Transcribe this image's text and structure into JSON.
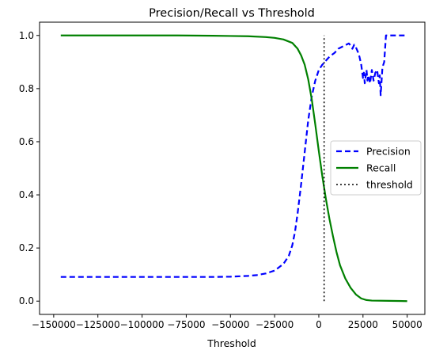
{
  "chart_data": {
    "type": "line",
    "title": "Precision/Recall vs Threshold",
    "xlabel": "Threshold",
    "ylabel": "",
    "xlim": [
      -158000,
      60000
    ],
    "ylim": [
      -0.05,
      1.05
    ],
    "grid": false,
    "legend_position": "center right",
    "x_ticks": [
      -150000,
      -125000,
      -100000,
      -75000,
      -50000,
      -25000,
      0,
      25000,
      50000
    ],
    "x_tick_labels": [
      "−150000",
      "−125000",
      "−100000",
      "−75000",
      "−50000",
      "−25000",
      "0",
      "25000",
      "50000"
    ],
    "y_ticks": [
      0.0,
      0.2,
      0.4,
      0.6,
      0.8,
      1.0
    ],
    "y_tick_labels": [
      "0.0",
      "0.2",
      "0.4",
      "0.6",
      "0.8",
      "1.0"
    ],
    "series": [
      {
        "name": "Precision",
        "color": "#0000ff",
        "style": "dashed",
        "points": [
          [
            -146000,
            0.091
          ],
          [
            -120000,
            0.091
          ],
          [
            -100000,
            0.091
          ],
          [
            -80000,
            0.091
          ],
          [
            -60000,
            0.091
          ],
          [
            -50000,
            0.092
          ],
          [
            -40000,
            0.095
          ],
          [
            -35000,
            0.098
          ],
          [
            -30000,
            0.104
          ],
          [
            -25000,
            0.115
          ],
          [
            -20000,
            0.14
          ],
          [
            -17000,
            0.17
          ],
          [
            -15000,
            0.21
          ],
          [
            -13500,
            0.26
          ],
          [
            -12000,
            0.33
          ],
          [
            -10000,
            0.44
          ],
          [
            -8000,
            0.56
          ],
          [
            -6000,
            0.68
          ],
          [
            -4000,
            0.77
          ],
          [
            -2000,
            0.83
          ],
          [
            0,
            0.87
          ],
          [
            2000,
            0.89
          ],
          [
            4000,
            0.905
          ],
          [
            6000,
            0.92
          ],
          [
            9000,
            0.935
          ],
          [
            11000,
            0.95
          ],
          [
            12500,
            0.955
          ],
          [
            14000,
            0.96
          ],
          [
            15500,
            0.965
          ],
          [
            17000,
            0.97
          ],
          [
            18000,
            0.962
          ],
          [
            19000,
            0.95
          ],
          [
            20000,
            0.965
          ],
          [
            21000,
            0.955
          ],
          [
            22000,
            0.94
          ],
          [
            23000,
            0.92
          ],
          [
            24000,
            0.89
          ],
          [
            25000,
            0.84
          ],
          [
            25500,
            0.86
          ],
          [
            26000,
            0.82
          ],
          [
            27000,
            0.87
          ],
          [
            27500,
            0.83
          ],
          [
            28000,
            0.85
          ],
          [
            29000,
            0.82
          ],
          [
            30000,
            0.87
          ],
          [
            31000,
            0.83
          ],
          [
            32000,
            0.86
          ],
          [
            33000,
            0.87
          ],
          [
            34000,
            0.82
          ],
          [
            34500,
            0.85
          ],
          [
            35000,
            0.775
          ],
          [
            36000,
            0.88
          ],
          [
            37000,
            0.9
          ],
          [
            38000,
            1.0
          ],
          [
            50000,
            1.0
          ]
        ]
      },
      {
        "name": "Recall",
        "color": "#008000",
        "style": "solid",
        "points": [
          [
            -146000,
            1.0
          ],
          [
            -120000,
            1.0
          ],
          [
            -100000,
            1.0
          ],
          [
            -80000,
            1.0
          ],
          [
            -60000,
            0.999
          ],
          [
            -50000,
            0.998
          ],
          [
            -40000,
            0.997
          ],
          [
            -30000,
            0.994
          ],
          [
            -25000,
            0.991
          ],
          [
            -20000,
            0.985
          ],
          [
            -15000,
            0.972
          ],
          [
            -12000,
            0.95
          ],
          [
            -10000,
            0.925
          ],
          [
            -8000,
            0.89
          ],
          [
            -6000,
            0.835
          ],
          [
            -4000,
            0.76
          ],
          [
            -2000,
            0.665
          ],
          [
            0,
            0.565
          ],
          [
            2000,
            0.47
          ],
          [
            4000,
            0.385
          ],
          [
            6000,
            0.31
          ],
          [
            8000,
            0.245
          ],
          [
            10000,
            0.185
          ],
          [
            12000,
            0.135
          ],
          [
            15000,
            0.085
          ],
          [
            18000,
            0.05
          ],
          [
            21000,
            0.025
          ],
          [
            24000,
            0.01
          ],
          [
            27000,
            0.004
          ],
          [
            30000,
            0.002
          ],
          [
            40000,
            0.001
          ],
          [
            50000,
            0.0
          ]
        ]
      },
      {
        "name": "threshold",
        "color": "#000000",
        "style": "dotted",
        "points": [
          [
            3000,
            0.0
          ],
          [
            3000,
            1.0
          ]
        ]
      }
    ]
  }
}
